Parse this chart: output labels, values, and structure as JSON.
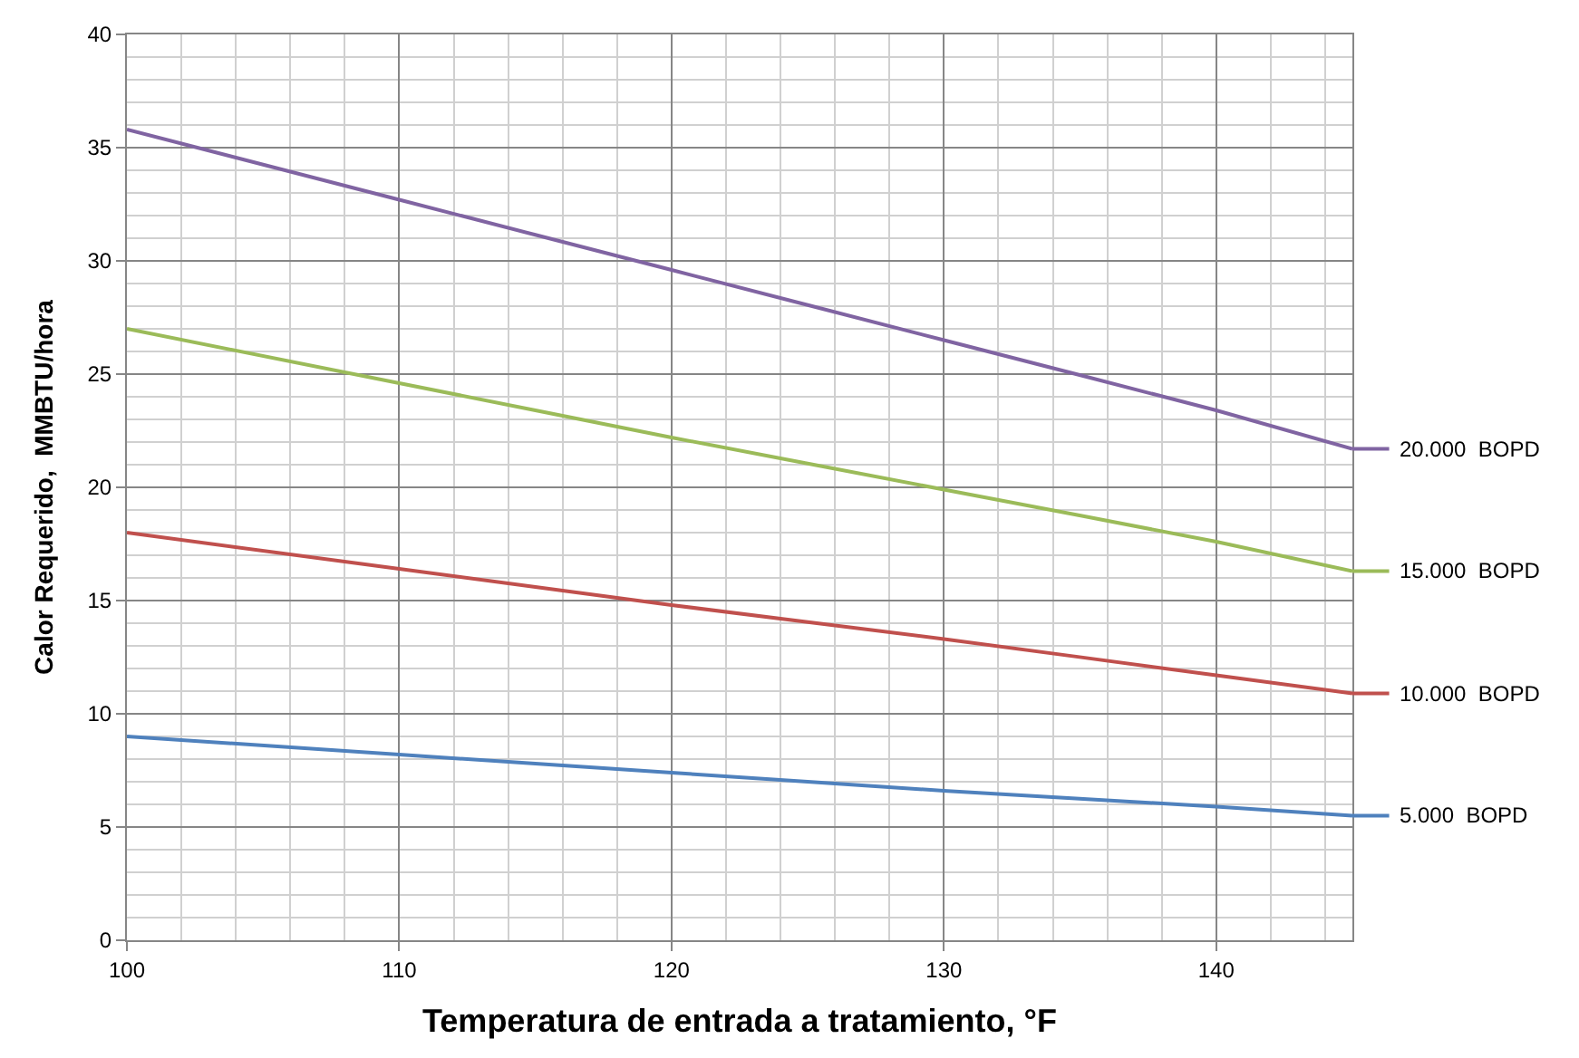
{
  "chart_data": {
    "type": "line",
    "xlabel": "Temperatura de entrada a tratamiento, °F",
    "ylabel": "Calor Requerido,  MMBTU/hora",
    "x": [
      100,
      110,
      120,
      130,
      140,
      145
    ],
    "series": [
      {
        "name": "5.000  BOPD",
        "color": "#4f81bd",
        "values": [
          9,
          8.2,
          7.4,
          6.6,
          5.9,
          5.5
        ]
      },
      {
        "name": "10.000  BOPD",
        "color": "#c0504d",
        "values": [
          18,
          16.4,
          14.8,
          13.3,
          11.7,
          10.9
        ]
      },
      {
        "name": "15.000  BOPD",
        "color": "#9bbb59",
        "values": [
          27,
          24.6,
          22.2,
          19.9,
          17.6,
          16.3
        ]
      },
      {
        "name": "20.000  BOPD",
        "color": "#8064a2",
        "values": [
          35.8,
          32.7,
          29.6,
          26.5,
          23.4,
          21.7
        ]
      }
    ],
    "xlim": [
      100,
      145
    ],
    "xticks": [
      100,
      110,
      120,
      130,
      140
    ],
    "ylim": [
      0,
      40
    ],
    "yticks": [
      0,
      5,
      10,
      15,
      20,
      25,
      30,
      35,
      40
    ],
    "grid": true,
    "legend": "right",
    "marker": "none",
    "line_style": "solid"
  }
}
